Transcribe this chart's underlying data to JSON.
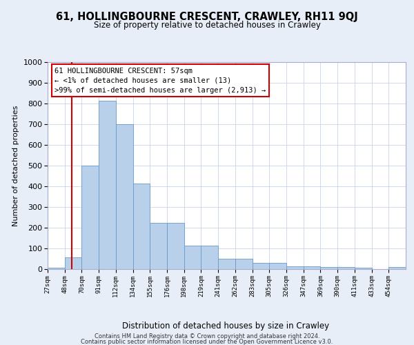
{
  "title_line1": "61, HOLLINGBOURNE CRESCENT, CRAWLEY, RH11 9QJ",
  "title_line2": "Size of property relative to detached houses in Crawley",
  "xlabel": "Distribution of detached houses by size in Crawley",
  "ylabel": "Number of detached properties",
  "annotation_line1": "61 HOLLINGBOURNE CRESCENT: 57sqm",
  "annotation_line2": "← <1% of detached houses are smaller (13)",
  "annotation_line3": ">99% of semi-detached houses are larger (2,913) →",
  "bar_labels": [
    "27sqm",
    "48sqm",
    "70sqm",
    "91sqm",
    "112sqm",
    "134sqm",
    "155sqm",
    "176sqm",
    "198sqm",
    "219sqm",
    "241sqm",
    "262sqm",
    "283sqm",
    "305sqm",
    "326sqm",
    "347sqm",
    "369sqm",
    "390sqm",
    "411sqm",
    "433sqm",
    "454sqm"
  ],
  "bar_heights": [
    8,
    57,
    500,
    812,
    700,
    415,
    225,
    225,
    113,
    113,
    50,
    50,
    30,
    30,
    15,
    15,
    10,
    10,
    8,
    0,
    10
  ],
  "bar_color": "#b8d0ea",
  "bar_edge_color": "#6699cc",
  "ylim": [
    0,
    1000
  ],
  "yticks": [
    0,
    100,
    200,
    300,
    400,
    500,
    600,
    700,
    800,
    900,
    1000
  ],
  "footer_line1": "Contains HM Land Registry data © Crown copyright and database right 2024.",
  "footer_line2": "Contains public sector information licensed under the Open Government Licence v3.0.",
  "background_color": "#e8eef8",
  "plot_bg_color": "#ffffff",
  "grid_color": "#c8d4e8",
  "red_line_color": "#cc0000",
  "annotation_box_color": "#cc0000"
}
